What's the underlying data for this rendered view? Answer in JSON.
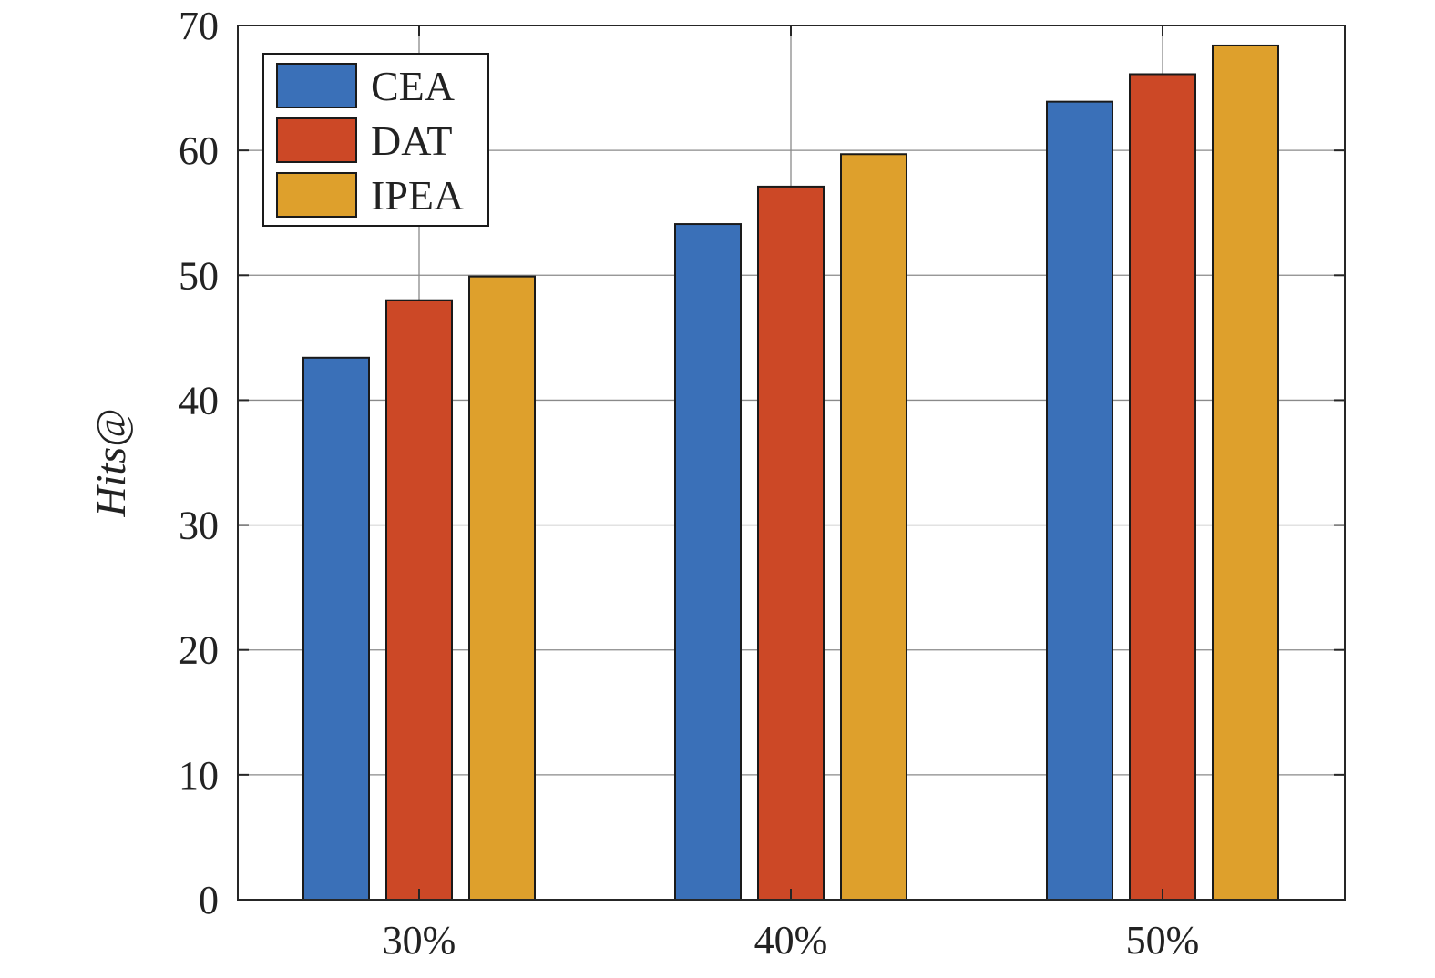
{
  "chart_data": {
    "type": "bar",
    "categories": [
      "30%",
      "40%",
      "50%"
    ],
    "series": [
      {
        "name": "CEA",
        "color": "#3a70b8",
        "values": [
          43.4,
          54.1,
          63.9
        ]
      },
      {
        "name": "DAT",
        "color": "#cc4826",
        "values": [
          48.0,
          57.1,
          66.1
        ]
      },
      {
        "name": "IPEA",
        "color": "#dea02c",
        "values": [
          49.9,
          59.7,
          68.4
        ]
      }
    ],
    "xlabel": "",
    "ylabel": "Hits@",
    "ylim": [
      0,
      70
    ],
    "yticks": [
      "0",
      "10",
      "20",
      "30",
      "40",
      "50",
      "60",
      "70"
    ],
    "grid": true,
    "legend": {
      "position": "top-left",
      "entries": [
        "CEA",
        "DAT",
        "IPEA"
      ]
    }
  }
}
